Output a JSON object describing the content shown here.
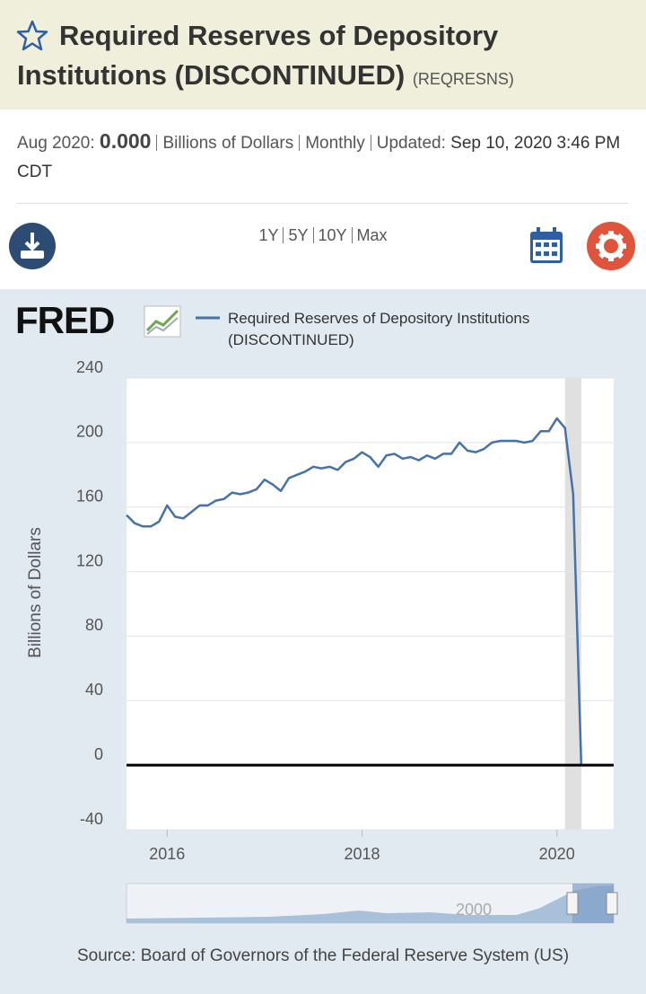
{
  "header": {
    "title": "Required Reserves of Depository Institutions (DISCONTINUED)",
    "series_id": "(REQRESNS)"
  },
  "summary": {
    "date": "Aug 2020:",
    "value": "0.000",
    "units": "Billions of Dollars",
    "frequency": "Monthly",
    "updated_label": "Updated:",
    "updated": "Sep 10, 2020 3:46 PM CDT"
  },
  "toolbar": {
    "ranges": [
      "1Y",
      "5Y",
      "10Y",
      "Max"
    ]
  },
  "logo": "FRED",
  "chart_data": {
    "type": "line",
    "ylabel": "Billions of Dollars",
    "x": [
      2015.583,
      2015.667,
      2015.75,
      2015.833,
      2015.917,
      2016,
      2016.083,
      2016.167,
      2016.25,
      2016.333,
      2016.417,
      2016.5,
      2016.583,
      2016.667,
      2016.75,
      2016.833,
      2016.917,
      2017,
      2017.083,
      2017.167,
      2017.25,
      2017.333,
      2017.417,
      2017.5,
      2017.583,
      2017.667,
      2017.75,
      2017.833,
      2017.917,
      2018,
      2018.083,
      2018.167,
      2018.25,
      2018.333,
      2018.417,
      2018.5,
      2018.583,
      2018.667,
      2018.75,
      2018.833,
      2018.917,
      2019,
      2019.083,
      2019.167,
      2019.25,
      2019.333,
      2019.417,
      2019.5,
      2019.583,
      2019.667,
      2019.75,
      2019.833,
      2019.917,
      2020,
      2020.083,
      2020.167,
      2020.25,
      2020.333,
      2020.417,
      2020.5,
      2020.583
    ],
    "series": [
      {
        "name": "Required Reserves of Depository Institutions (DISCONTINUED)",
        "color": "#4572a7",
        "values": [
          155,
          150,
          148,
          148,
          151,
          161,
          154,
          153,
          157,
          161,
          161,
          164,
          165,
          169,
          168,
          169,
          171,
          177,
          174,
          170,
          178,
          180,
          182,
          185,
          184,
          185,
          183,
          188,
          190,
          194,
          191,
          185,
          192,
          193,
          190,
          191,
          189,
          192,
          190,
          193,
          193,
          200,
          195,
          194,
          196,
          200,
          201,
          201,
          201,
          200,
          201,
          207,
          207,
          215,
          209,
          168,
          0,
          0,
          0,
          0,
          0
        ]
      }
    ],
    "recession": [
      2020.083,
      2020.25
    ],
    "xlim": [
      2015.583,
      2020.583
    ],
    "xticks": [
      2016,
      2018,
      2020
    ],
    "ylim": [
      -40,
      240
    ],
    "yticks": [
      -40,
      0,
      40,
      80,
      120,
      160,
      200,
      240
    ],
    "grid": true,
    "legend": "top-left"
  },
  "navigator_tick": 2000,
  "source": "Source: Board of Governors of the Federal Reserve System (US)"
}
